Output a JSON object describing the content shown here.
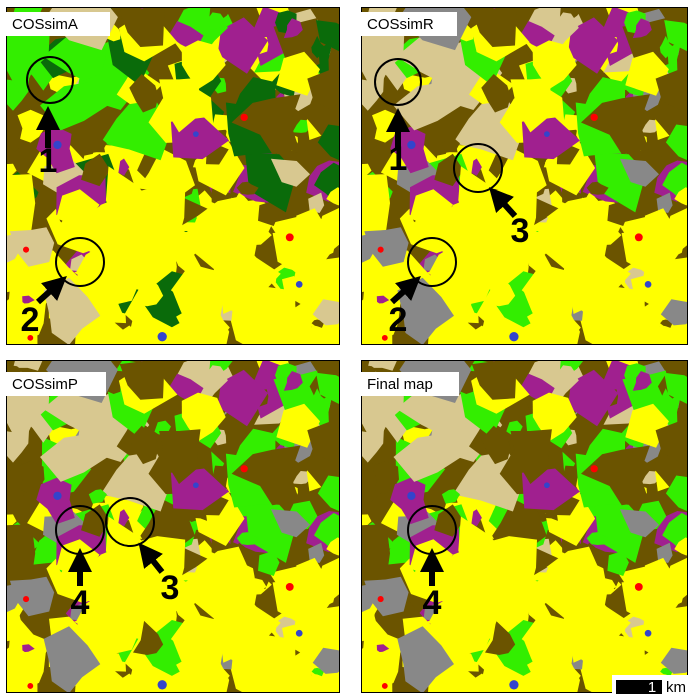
{
  "panels": [
    {
      "title": "COSsimA",
      "annotations": [
        "1",
        "2"
      ]
    },
    {
      "title": "COSsimR",
      "annotations": [
        "1",
        "3",
        "2"
      ]
    },
    {
      "title": "COSsimP",
      "annotations": [
        "4",
        "3"
      ]
    },
    {
      "title": "Final map",
      "annotations": [
        "4"
      ]
    }
  ],
  "scale_bar": {
    "value": "1",
    "unit": "km"
  }
}
